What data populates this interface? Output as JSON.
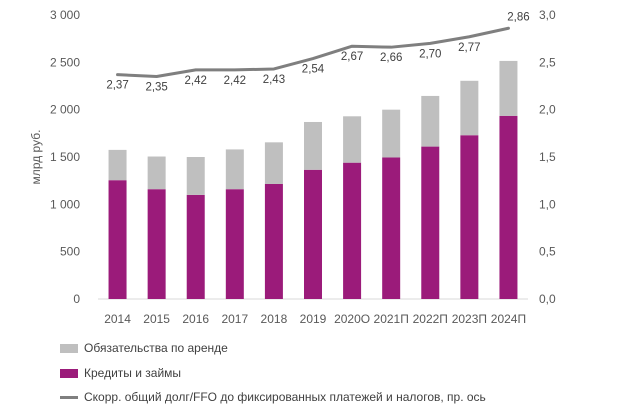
{
  "chart_data": {
    "type": "bar",
    "stacked": true,
    "categories": [
      "2014",
      "2015",
      "2016",
      "2017",
      "2018",
      "2019",
      "2020O",
      "2021П",
      "2022П",
      "2023П",
      "2024П"
    ],
    "ylabel": "млрд руб.",
    "y_ticks": [
      "0",
      "500",
      "1 000",
      "1 500",
      "2 000",
      "2 500",
      "3 000"
    ],
    "ylim": [
      0,
      3000
    ],
    "y2_ticks": [
      "0,0",
      "0,5",
      "1,0",
      "1,5",
      "2,0",
      "2,5",
      "3,0"
    ],
    "y2lim": [
      0,
      3
    ],
    "grid": false,
    "legend_position": "bottom",
    "series": [
      {
        "name": "Кредиты и займы",
        "type": "bar",
        "color": "#9b1b7a",
        "values": [
          1255,
          1160,
          1100,
          1160,
          1215,
          1365,
          1440,
          1495,
          1610,
          1730,
          1935
        ]
      },
      {
        "name": "Обязательства по аренде",
        "type": "bar",
        "color": "#bfbfbf",
        "values": [
          320,
          345,
          400,
          420,
          440,
          505,
          490,
          505,
          535,
          575,
          580
        ]
      },
      {
        "name": "Скорр. общий долг/FFO до фиксированных платежей и налогов, пр. ось",
        "type": "line",
        "axis": "right",
        "color": "#7f7f7f",
        "values": [
          2.37,
          2.35,
          2.42,
          2.42,
          2.43,
          2.54,
          2.67,
          2.66,
          2.7,
          2.77,
          2.86
        ],
        "labels": [
          "2,37",
          "2,35",
          "2,42",
          "2,42",
          "2,43",
          "2,54",
          "2,67",
          "2,66",
          "2,70",
          "2,77",
          "2,86"
        ]
      }
    ]
  }
}
